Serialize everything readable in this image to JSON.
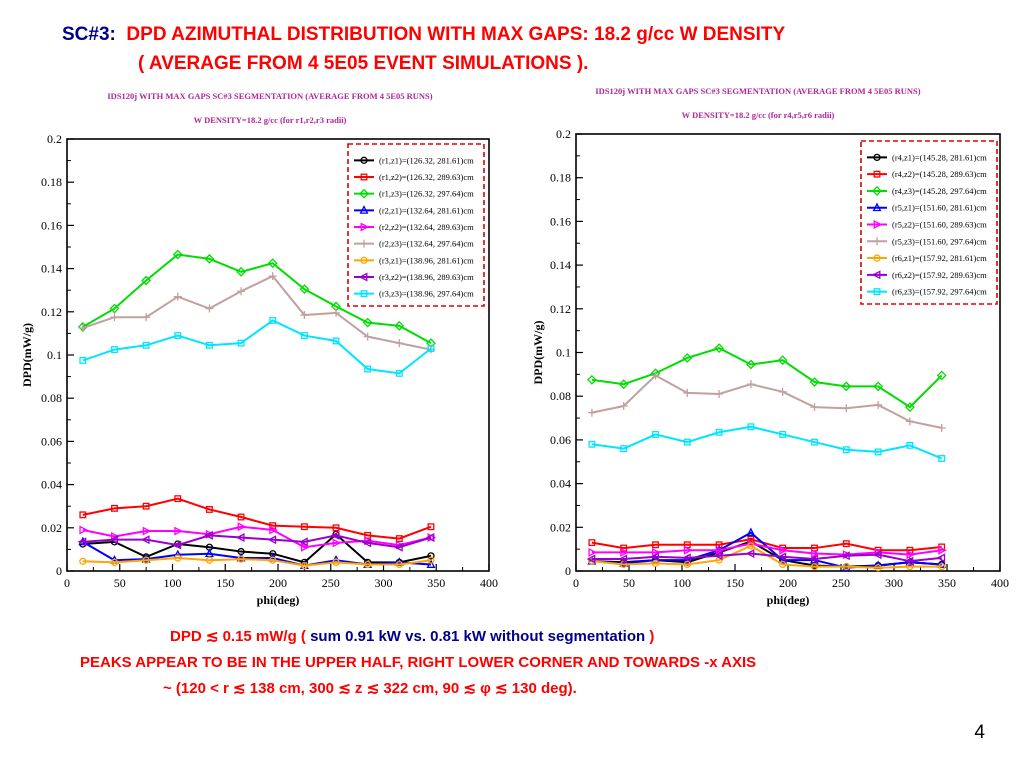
{
  "slide": {
    "title_tag": "SC#3:",
    "title_line1": "DPD AZIMUTHAL DISTRIBUTION  WITH MAX GAPS: 18.2  g/cc W  DENSITY",
    "title_line2": "( AVERAGE FROM 4 5E05 EVENT SIMULATIONS ).",
    "note1_a": "DPD ≲ 0.15 mW/g ( ",
    "note1_b": "sum 0.91 kW vs. 0.81 kW without segmentation",
    "note1_c": " )",
    "note2": "PEAKS APPEAR TO BE IN THE UPPER HALF, RIGHT LOWER CORNER AND TOWARDS -x AXIS",
    "note3": "~ (120 < r ≲ 138 cm, 300 ≲ z ≲ 322 cm, 90 ≲ φ ≲ 130 deg).",
    "page_number": "4"
  },
  "chart_data": [
    {
      "type": "line",
      "header_line1": "IDS120j  WITH MAX GAPS SC#3 SEGMENTATION (AVERAGE FROM 4 5E05 RUNS)",
      "header_line2": "W DENSITY=18.2 g/cc  (for r1,r2,r3 radii)",
      "xlabel": "phi(deg)",
      "ylabel": "DPD(mW/g)",
      "xlim": [
        0,
        400
      ],
      "ylim": [
        0,
        0.2
      ],
      "xticks": [
        "0",
        "50",
        "100",
        "150",
        "200",
        "250",
        "300",
        "350",
        "400"
      ],
      "yticks": [
        "0",
        "0.02",
        "0.04",
        "0.06",
        "0.08",
        "0.1",
        "0.12",
        "0.14",
        "0.16",
        "0.18",
        "0.2"
      ],
      "legend_position": "top-right",
      "x": [
        15,
        45,
        75,
        105,
        135,
        165,
        195,
        225,
        255,
        285,
        315,
        345
      ],
      "series": [
        {
          "name": "(r1,z1)=(126.32, 281.61)cm",
          "color": "#000000",
          "marker": "circle",
          "values": [
            0.0125,
            0.0135,
            0.0065,
            0.0125,
            0.011,
            0.009,
            0.008,
            0.004,
            0.017,
            0.004,
            0.004,
            0.007
          ]
        },
        {
          "name": "(r1,z2)=(126.32, 289.63)cm",
          "color": "#ff0000",
          "marker": "square",
          "values": [
            0.026,
            0.029,
            0.03,
            0.0335,
            0.0285,
            0.025,
            0.021,
            0.0205,
            0.02,
            0.0165,
            0.015,
            0.0205
          ]
        },
        {
          "name": "(r1,z3)=(126.32, 297.64)cm",
          "color": "#00dd00",
          "marker": "diamond",
          "values": [
            0.113,
            0.1215,
            0.1345,
            0.1465,
            0.1445,
            0.1385,
            0.1425,
            0.1305,
            0.1225,
            0.115,
            0.1135,
            0.1055
          ]
        },
        {
          "name": "(r2,z1)=(132.64, 281.61)cm",
          "color": "#0000ff",
          "marker": "triangle-up",
          "values": [
            0.0135,
            0.005,
            0.0055,
            0.0075,
            0.008,
            0.006,
            0.006,
            0.0025,
            0.005,
            0.003,
            0.004,
            0.003
          ]
        },
        {
          "name": "(r2,z2)=(132.64, 289.63)cm",
          "color": "#ff00ff",
          "marker": "triangle-right",
          "values": [
            0.019,
            0.016,
            0.0185,
            0.0185,
            0.017,
            0.0205,
            0.019,
            0.011,
            0.013,
            0.014,
            0.012,
            0.0155
          ]
        },
        {
          "name": "(r2,z3)=(132.64, 297.64)cm",
          "color": "#c0a0a0",
          "marker": "plus",
          "values": [
            0.1125,
            0.1175,
            0.1175,
            0.127,
            0.1215,
            0.1295,
            0.1365,
            0.1185,
            0.1195,
            0.1085,
            0.1055,
            0.1025
          ]
        },
        {
          "name": "(r3,z1)=(138.96, 281.61)cm",
          "color": "#ffa500",
          "marker": "circle",
          "values": [
            0.0045,
            0.004,
            0.005,
            0.006,
            0.005,
            0.0055,
            0.005,
            0.0025,
            0.004,
            0.003,
            0.003,
            0.005
          ]
        },
        {
          "name": "(r3,z2)=(138.96, 289.63)cm",
          "color": "#9900cc",
          "marker": "triangle-left",
          "values": [
            0.0135,
            0.0145,
            0.0145,
            0.012,
            0.0165,
            0.0155,
            0.0145,
            0.0135,
            0.0165,
            0.013,
            0.011,
            0.0155
          ]
        },
        {
          "name": "(r3,z3)=(138.96, 297.64)cm",
          "color": "#00e5ff",
          "marker": "square",
          "values": [
            0.0975,
            0.1025,
            0.1045,
            0.109,
            0.1045,
            0.1055,
            0.116,
            0.109,
            0.1065,
            0.0935,
            0.0915,
            0.103
          ]
        }
      ]
    },
    {
      "type": "line",
      "header_line1": "IDS120j  WITH MAX GAPS SC#3 SEGMENTATION (AVERAGE FROM 4 5E05 RUNS)",
      "header_line2": "W DENSITY=18.2 g/cc  (for r4,r5,r6 radii)",
      "xlabel": "phi(deg)",
      "ylabel": "DPD(mW/g)",
      "xlim": [
        0,
        400
      ],
      "ylim": [
        0,
        0.2
      ],
      "xticks": [
        "0",
        "50",
        "100",
        "150",
        "200",
        "250",
        "300",
        "350",
        "400"
      ],
      "yticks": [
        "0",
        "0.02",
        "0.04",
        "0.06",
        "0.08",
        "0.1",
        "0.12",
        "0.14",
        "0.16",
        "0.18",
        "0.2"
      ],
      "legend_position": "top-right",
      "x": [
        15,
        45,
        75,
        105,
        135,
        165,
        195,
        225,
        255,
        285,
        315,
        345
      ],
      "series": [
        {
          "name": "(r4,z1)=(145.28, 281.61)cm",
          "color": "#000000",
          "marker": "circle",
          "values": [
            0.0045,
            0.004,
            0.005,
            0.004,
            0.0085,
            0.0135,
            0.005,
            0.0025,
            0.002,
            0.0025,
            0.004,
            0.003
          ]
        },
        {
          "name": "(r4,z2)=(145.28, 289.63)cm",
          "color": "#ff0000",
          "marker": "square",
          "values": [
            0.013,
            0.0105,
            0.012,
            0.012,
            0.012,
            0.0145,
            0.0105,
            0.0105,
            0.0125,
            0.0095,
            0.0095,
            0.011
          ]
        },
        {
          "name": "(r4,z3)=(145.28, 297.64)cm",
          "color": "#00dd00",
          "marker": "diamond",
          "values": [
            0.0875,
            0.0855,
            0.0905,
            0.0975,
            0.102,
            0.0945,
            0.0965,
            0.0865,
            0.0845,
            0.0845,
            0.075,
            0.0895
          ]
        },
        {
          "name": "(r5,z1)=(151.60, 281.61)cm",
          "color": "#0000ff",
          "marker": "triangle-up",
          "values": [
            0.0045,
            0.0035,
            0.005,
            0.005,
            0.0095,
            0.0175,
            0.005,
            0.005,
            0.0015,
            0.0025,
            0.004,
            0.003
          ]
        },
        {
          "name": "(r5,z2)=(151.60, 289.63)cm",
          "color": "#ff00ff",
          "marker": "triangle-right",
          "values": [
            0.0085,
            0.0085,
            0.0085,
            0.0095,
            0.0095,
            0.0125,
            0.0095,
            0.008,
            0.0075,
            0.0085,
            0.0075,
            0.0095
          ]
        },
        {
          "name": "(r5,z3)=(151.60, 297.64)cm",
          "color": "#c0a0a0",
          "marker": "plus",
          "values": [
            0.0725,
            0.0755,
            0.0895,
            0.0815,
            0.081,
            0.0855,
            0.082,
            0.075,
            0.0745,
            0.076,
            0.0685,
            0.0655
          ]
        },
        {
          "name": "(r6,z1)=(157.92, 281.61)cm",
          "color": "#ffa500",
          "marker": "circle",
          "values": [
            0.0045,
            0.003,
            0.0035,
            0.003,
            0.005,
            0.0115,
            0.003,
            0.002,
            0.002,
            0.0015,
            0.002,
            0.002
          ]
        },
        {
          "name": "(r6,z2)=(157.92, 289.63)cm",
          "color": "#9900cc",
          "marker": "triangle-left",
          "values": [
            0.0055,
            0.0055,
            0.0065,
            0.006,
            0.007,
            0.008,
            0.0065,
            0.0055,
            0.007,
            0.0075,
            0.0045,
            0.006
          ]
        },
        {
          "name": "(r6,z3)=(157.92, 297.64)cm",
          "color": "#00e5ff",
          "marker": "square",
          "values": [
            0.058,
            0.056,
            0.0625,
            0.059,
            0.0635,
            0.066,
            0.0625,
            0.059,
            0.0555,
            0.0545,
            0.0575,
            0.0515
          ]
        }
      ]
    }
  ]
}
